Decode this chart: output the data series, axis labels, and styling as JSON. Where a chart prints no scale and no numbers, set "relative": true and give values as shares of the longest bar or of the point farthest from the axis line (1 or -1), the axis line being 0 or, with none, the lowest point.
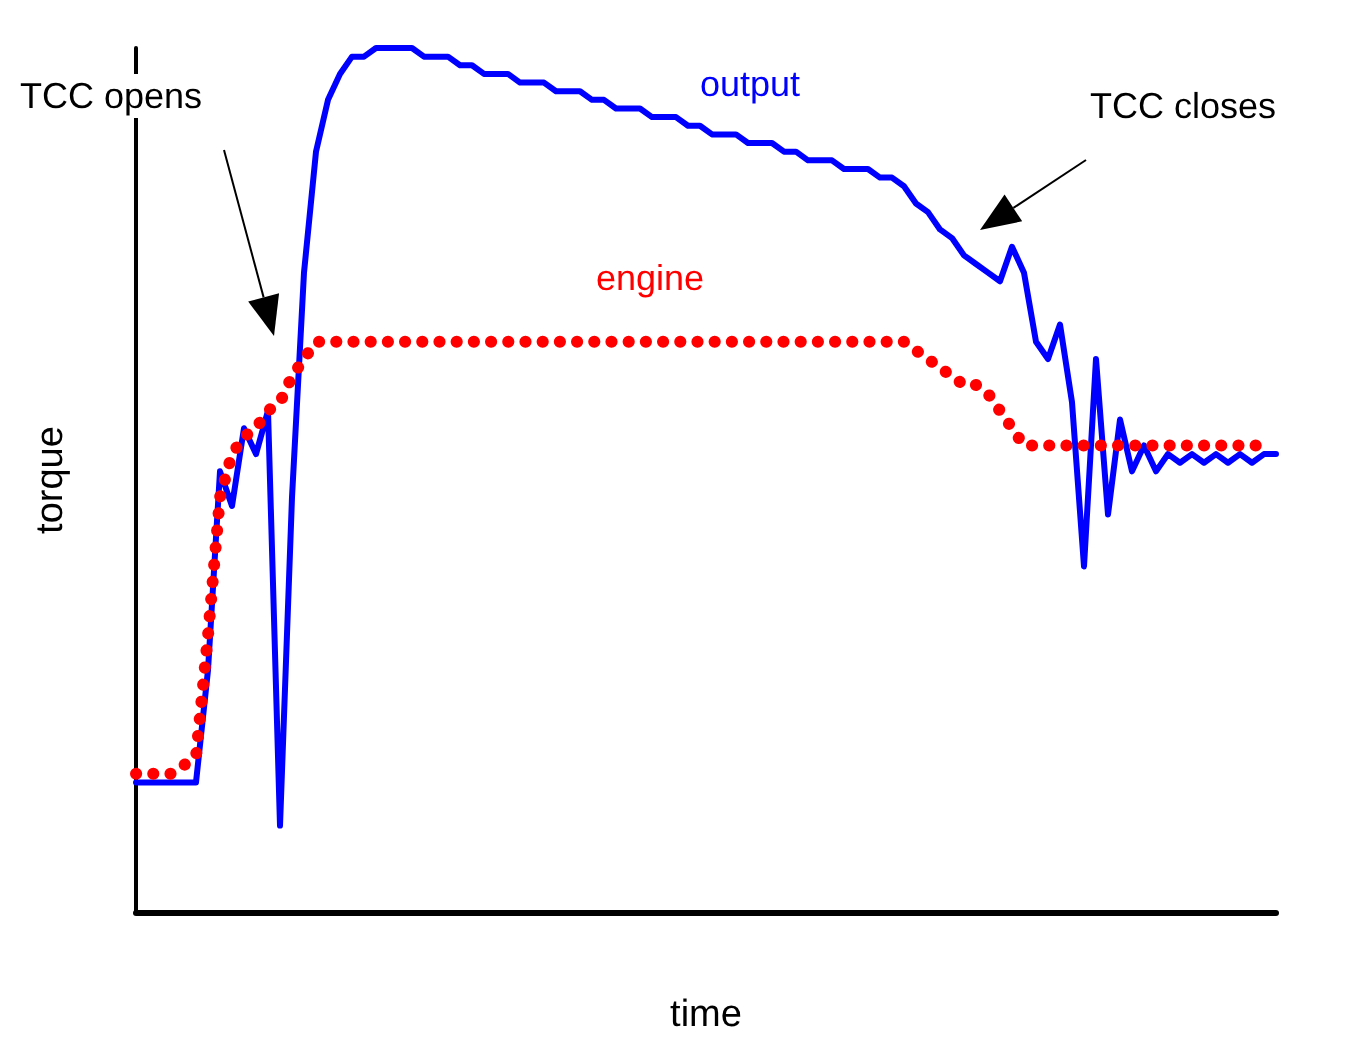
{
  "chart_data": {
    "type": "line",
    "relative": true,
    "xlabel": "time",
    "ylabel": "torque",
    "annotations": [
      "TCC opens",
      "TCC closes"
    ],
    "categories": [
      null,
      null,
      null,
      null,
      null,
      null,
      null,
      null,
      null,
      null,
      null,
      null,
      null,
      null,
      null,
      null,
      null,
      null,
      null,
      null,
      null,
      null,
      null,
      null,
      null,
      null,
      null,
      null,
      null,
      null,
      null,
      null,
      null,
      null,
      null,
      null,
      null,
      null,
      null,
      null,
      null,
      null,
      null,
      null,
      null,
      null,
      null,
      null,
      null,
      null,
      null,
      null,
      null,
      null,
      null,
      null,
      null,
      null,
      null,
      null,
      null,
      null,
      null,
      null,
      null,
      null,
      null,
      null,
      null,
      null,
      null,
      null,
      null,
      null,
      null,
      null,
      null,
      null,
      null,
      null,
      null,
      null,
      null,
      null,
      null,
      null,
      null,
      null,
      null,
      null,
      null,
      null,
      null,
      null,
      null,
      null
    ],
    "series": [
      {
        "name": "output",
        "color": "#0000ff",
        "line_style": "solid",
        "values": [
          0.15,
          0.15,
          0.15,
          0.15,
          0.15,
          0.15,
          0.28,
          0.51,
          0.47,
          0.56,
          0.53,
          0.58,
          0.1,
          0.48,
          0.74,
          0.88,
          0.94,
          0.97,
          0.99,
          0.99,
          1.0,
          1.0,
          1.0,
          1.0,
          0.99,
          0.99,
          0.99,
          0.98,
          0.98,
          0.97,
          0.97,
          0.97,
          0.96,
          0.96,
          0.96,
          0.95,
          0.95,
          0.95,
          0.94,
          0.94,
          0.93,
          0.93,
          0.93,
          0.92,
          0.92,
          0.92,
          0.91,
          0.91,
          0.9,
          0.9,
          0.9,
          0.89,
          0.89,
          0.89,
          0.88,
          0.88,
          0.87,
          0.87,
          0.87,
          0.86,
          0.86,
          0.86,
          0.85,
          0.85,
          0.84,
          0.82,
          0.81,
          0.79,
          0.78,
          0.76,
          0.75,
          0.74,
          0.73,
          0.77,
          0.74,
          0.66,
          0.64,
          0.68,
          0.59,
          0.4,
          0.64,
          0.46,
          0.57,
          0.51,
          0.54,
          0.51,
          0.53,
          0.52,
          0.53,
          0.52,
          0.53,
          0.52,
          0.53,
          0.52,
          0.53,
          0.53
        ]
      },
      {
        "name": "engine",
        "color": "#ff0000",
        "line_style": "dotted",
        "values": [
          0.16,
          0.16,
          0.16,
          0.16,
          0.17,
          0.18,
          0.32,
          0.48,
          0.53,
          0.55,
          0.56,
          0.58,
          0.59,
          0.62,
          0.64,
          0.66,
          0.66,
          0.66,
          0.66,
          0.66,
          0.66,
          0.66,
          0.66,
          0.66,
          0.66,
          0.66,
          0.66,
          0.66,
          0.66,
          0.66,
          0.66,
          0.66,
          0.66,
          0.66,
          0.66,
          0.66,
          0.66,
          0.66,
          0.66,
          0.66,
          0.66,
          0.66,
          0.66,
          0.66,
          0.66,
          0.66,
          0.66,
          0.66,
          0.66,
          0.66,
          0.66,
          0.66,
          0.66,
          0.66,
          0.66,
          0.66,
          0.66,
          0.66,
          0.66,
          0.66,
          0.66,
          0.66,
          0.66,
          0.66,
          0.66,
          0.65,
          0.64,
          0.63,
          0.62,
          0.61,
          0.61,
          0.6,
          0.58,
          0.56,
          0.54,
          0.54,
          0.54,
          0.54,
          0.54,
          0.54,
          0.54,
          0.54,
          0.54,
          0.54,
          0.54,
          0.54,
          0.54,
          0.54,
          0.54,
          0.54,
          0.54,
          0.54,
          0.54,
          0.54,
          0.54,
          null
        ]
      }
    ]
  }
}
